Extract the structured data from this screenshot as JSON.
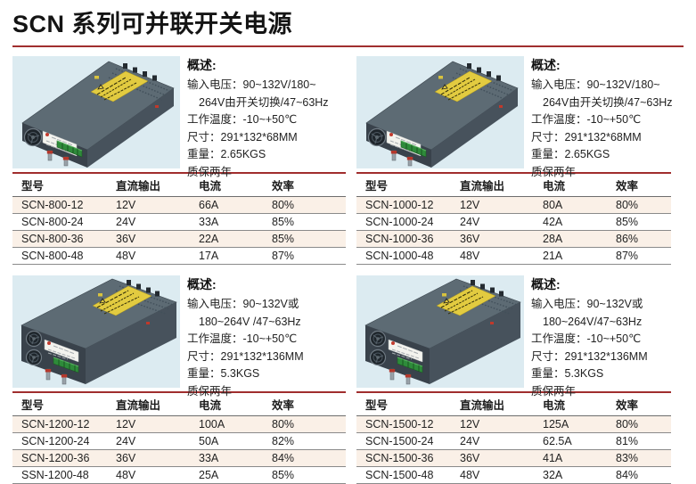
{
  "page": {
    "title": "SCN 系列可并联开关电源"
  },
  "colors": {
    "accent": "#a02e2e",
    "row_shade": "#faf0e7",
    "photo_panel": "#dcebf1"
  },
  "table_headers": [
    "型号",
    "直流输出",
    "电流",
    "效率"
  ],
  "sections": [
    {
      "series": "SCN-800",
      "variant": "single",
      "overview_label": "概述:",
      "specs": [
        "输入电压：90~132V/180~",
        "264V由开关切换/47~63Hz",
        "工作温度：-10~+50℃",
        "尺寸：291*132*68MM",
        "重量：2.65KGS",
        "质保两年"
      ],
      "rows": [
        [
          "SCN-800-12",
          "12V",
          "66A",
          "80%"
        ],
        [
          "SCN-800-24",
          "24V",
          "33A",
          "85%"
        ],
        [
          "SCN-800-36",
          "36V",
          "22A",
          "85%"
        ],
        [
          "SCN-800-48",
          "48V",
          "17A",
          "87%"
        ]
      ]
    },
    {
      "series": "SCN-1000",
      "variant": "single",
      "overview_label": "概述:",
      "specs": [
        "输入电压：90~132V/180~",
        "264V由开关切换/47~63Hz",
        "工作温度：-10~+50℃",
        "尺寸：291*132*68MM",
        "重量：2.65KGS",
        "质保两年"
      ],
      "rows": [
        [
          "SCN-1000-12",
          "12V",
          "80A",
          "80%"
        ],
        [
          "SCN-1000-24",
          "24V",
          "42A",
          "85%"
        ],
        [
          "SCN-1000-36",
          "36V",
          "28A",
          "86%"
        ],
        [
          "SCN-1000-48",
          "48V",
          "21A",
          "87%"
        ]
      ]
    },
    {
      "series": "SCN-1200",
      "variant": "double",
      "overview_label": "概述:",
      "specs": [
        "输入电压：90~132V或",
        "180~264V /47~63Hz",
        "工作温度：-10~+50℃",
        "尺寸：291*132*136MM",
        "重量：5.3KGS",
        "质保两年"
      ],
      "rows": [
        [
          "SCN-1200-12",
          "12V",
          "100A",
          "80%"
        ],
        [
          "SCN-1200-24",
          "24V",
          "50A",
          "82%"
        ],
        [
          "SCN-1200-36",
          "36V",
          "33A",
          "84%"
        ],
        [
          "SSN-1200-48",
          "48V",
          "25A",
          "85%"
        ]
      ]
    },
    {
      "series": "SCN-1500",
      "variant": "double",
      "overview_label": "概述:",
      "specs": [
        "输入电压：90~132V或",
        "180~264V/47~63Hz",
        "工作温度：-10~+50℃",
        "尺寸：291*132*136MM",
        "重量：5.3KGS",
        "质保两年"
      ],
      "rows": [
        [
          "SCN-1500-12",
          "12V",
          "125A",
          "80%"
        ],
        [
          "SCN-1500-24",
          "24V",
          "62.5A",
          "81%"
        ],
        [
          "SCN-1500-36",
          "36V",
          "41A",
          "83%"
        ],
        [
          "SCN-1500-48",
          "48V",
          "32A",
          "84%"
        ]
      ]
    }
  ]
}
